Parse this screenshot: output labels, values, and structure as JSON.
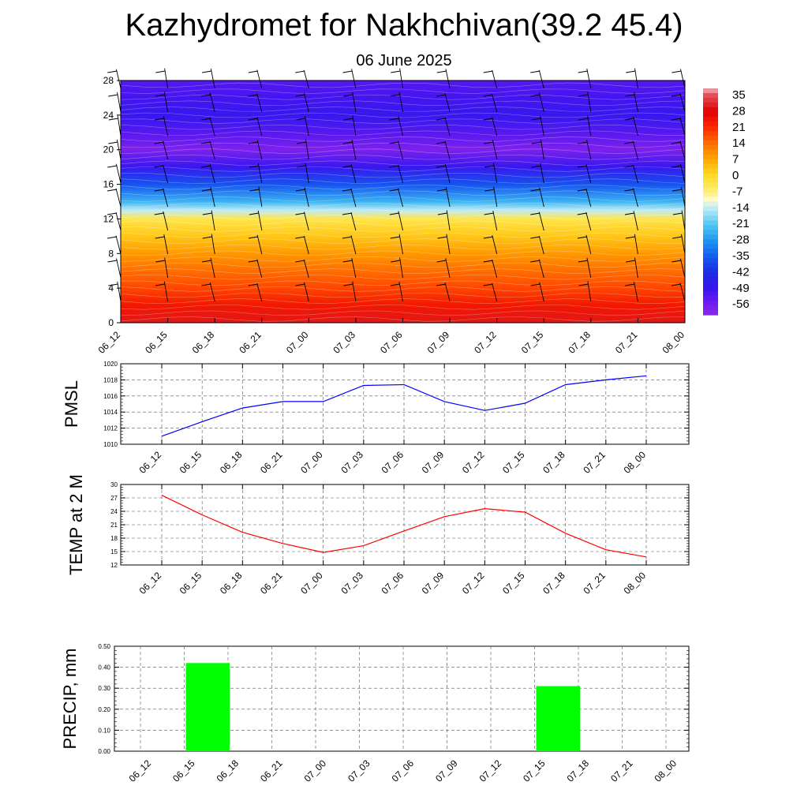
{
  "title": "Kazhydromet for Nakhchivan(39.2 45.4)",
  "subtitle": "06 June 2025",
  "time_labels": [
    "06_12",
    "06_15",
    "06_18",
    "06_21",
    "07_00",
    "07_03",
    "07_06",
    "07_09",
    "07_12",
    "07_15",
    "07_18",
    "07_21",
    "08_00"
  ],
  "chart_data": [
    {
      "type": "heatmap",
      "name": "cross-section",
      "y_ticks": [
        0,
        4,
        8,
        12,
        16,
        20,
        24,
        28
      ],
      "ylim": [
        0,
        28
      ],
      "colorbar_labels": [
        "35",
        "28",
        "21",
        "14",
        "7",
        "0",
        "-7",
        "-14",
        "-21",
        "-28",
        "-35",
        "-42",
        "-49",
        "-56"
      ],
      "colorbar_range": [
        -60,
        38
      ],
      "temperature_profile": [
        {
          "level": 0,
          "value": 30
        },
        {
          "level": 2,
          "value": 24
        },
        {
          "level": 4,
          "value": 18
        },
        {
          "level": 6,
          "value": 14
        },
        {
          "level": 8,
          "value": 9
        },
        {
          "level": 10,
          "value": 3
        },
        {
          "level": 12,
          "value": -3
        },
        {
          "level": 13,
          "value": -14
        },
        {
          "level": 14,
          "value": -24
        },
        {
          "level": 16,
          "value": -36
        },
        {
          "level": 18,
          "value": -48
        },
        {
          "level": 20,
          "value": -57
        },
        {
          "level": 22,
          "value": -52
        },
        {
          "level": 24,
          "value": -48
        },
        {
          "level": 26,
          "value": -50
        },
        {
          "level": 28,
          "value": -52
        }
      ]
    },
    {
      "type": "line",
      "ylabel": "PMSL",
      "ylim": [
        1010,
        1020
      ],
      "y_ticks": [
        1010,
        1012,
        1014,
        1016,
        1018,
        1020
      ],
      "color": "#0000ff",
      "x": [
        "06_12",
        "06_15",
        "06_18",
        "06_21",
        "07_00",
        "07_03",
        "07_06",
        "07_09",
        "07_12",
        "07_15",
        "07_18",
        "07_21",
        "08_00"
      ],
      "values": [
        1011.0,
        1012.8,
        1014.5,
        1015.3,
        1015.3,
        1017.3,
        1017.4,
        1015.3,
        1014.2,
        1015.1,
        1017.4,
        1018.0,
        1018.5
      ]
    },
    {
      "type": "line",
      "ylabel": "TEMP at 2 M",
      "ylim": [
        12,
        30
      ],
      "y_ticks": [
        12,
        15,
        18,
        21,
        24,
        27,
        30
      ],
      "color": "#ff0000",
      "x": [
        "06_12",
        "06_15",
        "06_18",
        "06_21",
        "07_00",
        "07_03",
        "07_06",
        "07_09",
        "07_12",
        "07_15",
        "07_18",
        "07_21",
        "08_00"
      ],
      "values": [
        27.6,
        23.2,
        19.3,
        16.8,
        14.8,
        16.3,
        19.6,
        22.8,
        24.6,
        23.8,
        19.1,
        15.4,
        13.8
      ]
    },
    {
      "type": "bar",
      "ylabel": "PRECIP, mm",
      "ylim": [
        0,
        0.5
      ],
      "y_ticks": [
        "0.00",
        "0.10",
        "0.20",
        "0.30",
        "0.40",
        "0.50"
      ],
      "color": "#00ff00",
      "categories": [
        "06_12",
        "06_15",
        "06_18",
        "06_21",
        "07_00",
        "07_03",
        "07_06",
        "07_09",
        "07_12",
        "07_15",
        "07_18",
        "07_21",
        "08_00"
      ],
      "values": [
        0,
        0.42,
        0,
        0,
        0,
        0,
        0,
        0,
        0,
        0.31,
        0,
        0,
        0
      ]
    }
  ]
}
